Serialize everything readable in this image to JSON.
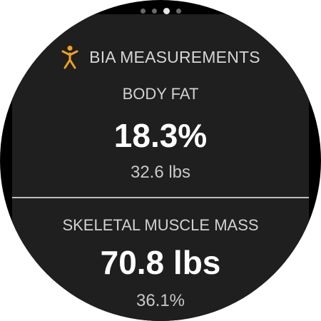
{
  "pager": {
    "count": 4,
    "active_index": 2
  },
  "header": {
    "icon": "person-figure-icon",
    "icon_color": "#f0a020",
    "title": "BIA MEASUREMENTS"
  },
  "body_fat": {
    "label": "BODY FAT",
    "value": "18.3%",
    "secondary": "32.6 lbs"
  },
  "skeletal_muscle": {
    "label": "SKELETAL MUSCLE MASS",
    "value": "70.8 lbs",
    "secondary": "36.1%"
  }
}
